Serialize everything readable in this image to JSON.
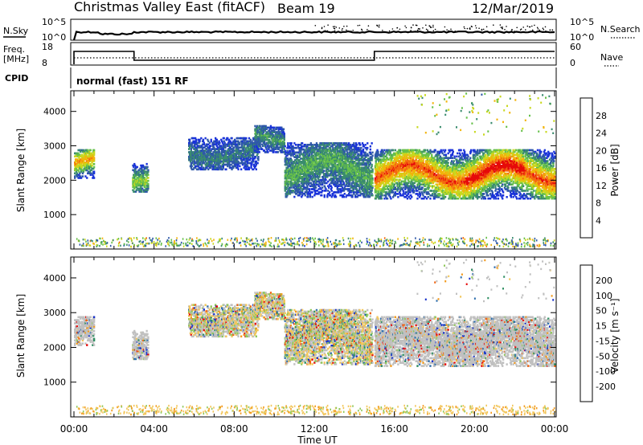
{
  "header": {
    "title": "Christmas Valley East (fitACF)",
    "beam": "Beam 19",
    "date": "12/Mar/2019"
  },
  "params": {
    "nsky_label": "N.Sky",
    "nsearch_label": "N.Search",
    "nsky_ticks": [
      "10^5",
      "10^0"
    ],
    "nsearch_ticks": [
      "10^5",
      "10^0"
    ],
    "freq_label_1": "Freq.",
    "freq_label_2": "[MHz]",
    "freq_ticks": [
      "18",
      "8"
    ],
    "nave_label": "Nave",
    "nave_ticks": [
      "60",
      "0"
    ],
    "cpid_label": "CPID",
    "cpid_value": "normal (fast) 151 RF"
  },
  "chart_data": [
    {
      "type": "heatmap",
      "name": "power",
      "xlabel": "Time UT",
      "ylabel": "Slant Range [km]",
      "x_ticks": [
        "00:00",
        "04:00",
        "08:00",
        "12:00",
        "16:00",
        "20:00",
        "00:00"
      ],
      "xlim_hours": [
        0,
        24
      ],
      "ylim": [
        0,
        4600
      ],
      "y_ticks": [
        1000,
        2000,
        3000,
        4000
      ],
      "colorbar": {
        "label": "Power [dB]",
        "ticks": [
          4,
          8,
          12,
          16,
          20,
          24,
          28
        ],
        "range": [
          0,
          30
        ],
        "colors": [
          "#1a33d9",
          "#2e58a8",
          "#3a8c6e",
          "#66c04a",
          "#c8d81e",
          "#f2b40a",
          "#f46a10",
          "#e60a0a"
        ]
      },
      "echo_regions": [
        {
          "hours": [
            0.0,
            1.0
          ],
          "range_km": [
            2050,
            2900
          ],
          "peak_db": 24
        },
        {
          "hours": [
            2.9,
            3.7
          ],
          "range_km": [
            1650,
            2500
          ],
          "peak_db": 16
        },
        {
          "hours": [
            5.7,
            9.2
          ],
          "range_km": [
            2300,
            3250
          ],
          "peak_db": 8
        },
        {
          "hours": [
            9.0,
            10.5
          ],
          "range_km": [
            2800,
            3600
          ],
          "peak_db": 10
        },
        {
          "hours": [
            10.5,
            14.9
          ],
          "range_km": [
            1500,
            3100
          ],
          "peak_db": 12
        },
        {
          "hours": [
            15.0,
            24.0
          ],
          "range_km": [
            1450,
            2900
          ],
          "peak_db": 28
        }
      ]
    },
    {
      "type": "heatmap",
      "name": "velocity",
      "xlabel": "Time UT",
      "ylabel": "Slant Range [km]",
      "x_ticks": [
        "00:00",
        "04:00",
        "08:00",
        "12:00",
        "16:00",
        "20:00",
        "00:00"
      ],
      "xlim_hours": [
        0,
        24
      ],
      "ylim": [
        0,
        4600
      ],
      "y_ticks": [
        1000,
        2000,
        3000,
        4000
      ],
      "colorbar": {
        "label": "Velocity [m s⁻¹]",
        "ticks": [
          200,
          100,
          50,
          15,
          -15,
          -50,
          -100,
          -200
        ],
        "colors": [
          "#1a33cc",
          "#2e6fae",
          "#2f8f62",
          "#8fc85a",
          "#c8c8c0",
          "#f2c65a",
          "#f39a1c",
          "#f06412",
          "#e60a0a"
        ]
      },
      "ground_scatter_color": "#c0c0c0"
    }
  ]
}
